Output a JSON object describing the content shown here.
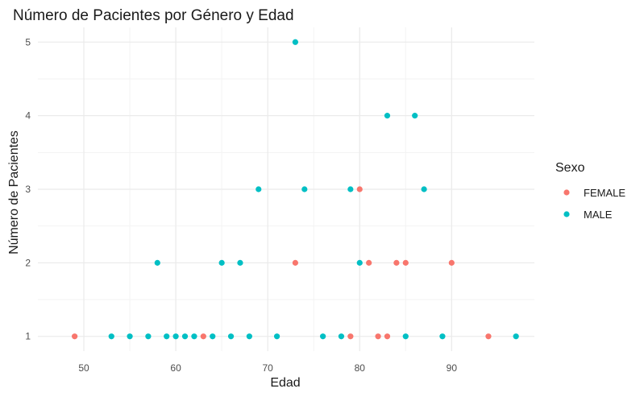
{
  "chart_data": {
    "type": "scatter",
    "title": "Número de Pacientes por Género y Edad",
    "xlabel": "Edad",
    "ylabel": "Número de Pacientes",
    "xlim": [
      45,
      99
    ],
    "ylim": [
      0.8,
      5.2
    ],
    "xticks": [
      50,
      60,
      70,
      80,
      90
    ],
    "yticks": [
      1,
      2,
      3,
      4,
      5
    ],
    "grid": true,
    "legend": {
      "title": "Sexo",
      "position": "right"
    },
    "series": [
      {
        "name": "FEMALE",
        "color": "#F8766D",
        "points": [
          [
            49,
            1
          ],
          [
            63,
            1
          ],
          [
            73,
            2
          ],
          [
            79,
            1
          ],
          [
            80,
            3
          ],
          [
            81,
            2
          ],
          [
            82,
            1
          ],
          [
            83,
            1
          ],
          [
            84,
            2
          ],
          [
            85,
            2
          ],
          [
            90,
            2
          ],
          [
            94,
            1
          ]
        ]
      },
      {
        "name": "MALE",
        "color": "#00BFC4",
        "points": [
          [
            53,
            1
          ],
          [
            55,
            1
          ],
          [
            57,
            1
          ],
          [
            58,
            2
          ],
          [
            59,
            1
          ],
          [
            60,
            1
          ],
          [
            61,
            1
          ],
          [
            62,
            1
          ],
          [
            64,
            1
          ],
          [
            65,
            2
          ],
          [
            66,
            1
          ],
          [
            67,
            2
          ],
          [
            68,
            1
          ],
          [
            69,
            3
          ],
          [
            71,
            1
          ],
          [
            73,
            5
          ],
          [
            74,
            3
          ],
          [
            76,
            1
          ],
          [
            78,
            1
          ],
          [
            79,
            3
          ],
          [
            80,
            2
          ],
          [
            83,
            4
          ],
          [
            85,
            1
          ],
          [
            86,
            4
          ],
          [
            87,
            3
          ],
          [
            89,
            1
          ],
          [
            97,
            1
          ]
        ]
      }
    ]
  }
}
